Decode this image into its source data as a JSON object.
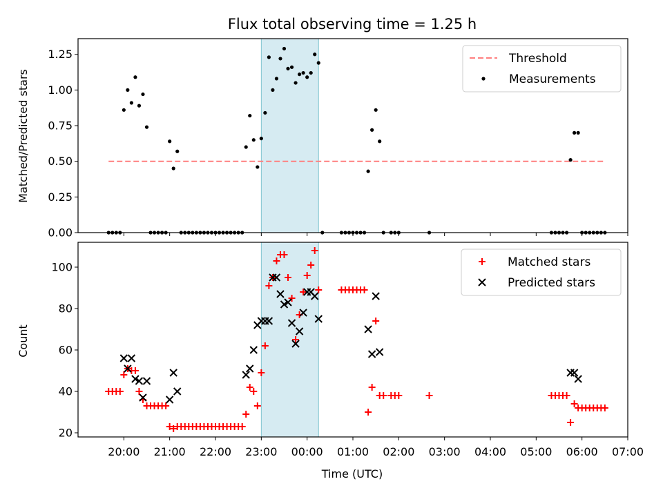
{
  "title": "Flux total observing time = 1.25 h",
  "x_label": "Time (UTC)",
  "x_ticks": [
    "20:00",
    "21:00",
    "22:00",
    "23:00",
    "00:00",
    "01:00",
    "02:00",
    "03:00",
    "04:00",
    "05:00",
    "06:00",
    "07:00"
  ],
  "chart_data": [
    {
      "type": "scatter",
      "ylabel": "Matched/Predicted stars",
      "ylim": [
        0,
        1.36
      ],
      "yticks": [
        "0.00",
        "0.25",
        "0.50",
        "0.75",
        "1.00",
        "1.25"
      ],
      "xlim": [
        "19:00",
        "07:00"
      ],
      "shaded_span": [
        "23:00",
        "00:15"
      ],
      "legend_position": "upper right",
      "series": [
        {
          "name": "Threshold",
          "kind": "dashed-line",
          "color": "#ff7f7f",
          "points": [
            [
              "19:40",
              0.5
            ],
            [
              "06:30",
              0.5
            ]
          ]
        },
        {
          "name": "Measurements",
          "kind": "dots",
          "color": "#000000",
          "points": [
            [
              "19:40",
              0
            ],
            [
              "19:45",
              0
            ],
            [
              "19:50",
              0
            ],
            [
              "19:55",
              0
            ],
            [
              "20:00",
              0.86
            ],
            [
              "20:05",
              1.0
            ],
            [
              "20:10",
              0.91
            ],
            [
              "20:15",
              1.09
            ],
            [
              "20:20",
              0.89
            ],
            [
              "20:25",
              0.97
            ],
            [
              "20:30",
              0.74
            ],
            [
              "20:35",
              0
            ],
            [
              "20:40",
              0
            ],
            [
              "20:45",
              0
            ],
            [
              "20:50",
              0
            ],
            [
              "20:55",
              0
            ],
            [
              "21:00",
              0.64
            ],
            [
              "21:05",
              0.45
            ],
            [
              "21:10",
              0.57
            ],
            [
              "21:15",
              0
            ],
            [
              "21:20",
              0
            ],
            [
              "21:25",
              0
            ],
            [
              "21:30",
              0
            ],
            [
              "21:35",
              0
            ],
            [
              "21:40",
              0
            ],
            [
              "21:45",
              0
            ],
            [
              "21:50",
              0
            ],
            [
              "21:55",
              0
            ],
            [
              "22:00",
              0
            ],
            [
              "22:05",
              0
            ],
            [
              "22:10",
              0
            ],
            [
              "22:15",
              0
            ],
            [
              "22:20",
              0
            ],
            [
              "22:25",
              0
            ],
            [
              "22:30",
              0
            ],
            [
              "22:35",
              0
            ],
            [
              "22:40",
              0.6
            ],
            [
              "22:45",
              0.82
            ],
            [
              "22:50",
              0.65
            ],
            [
              "22:55",
              0.46
            ],
            [
              "23:00",
              0.66
            ],
            [
              "23:05",
              0.84
            ],
            [
              "23:10",
              1.23
            ],
            [
              "23:15",
              1.0
            ],
            [
              "23:20",
              1.08
            ],
            [
              "23:25",
              1.22
            ],
            [
              "23:30",
              1.29
            ],
            [
              "23:35",
              1.15
            ],
            [
              "23:40",
              1.16
            ],
            [
              "23:45",
              1.05
            ],
            [
              "23:50",
              1.11
            ],
            [
              "23:55",
              1.12
            ],
            [
              "00:00",
              1.09
            ],
            [
              "00:05",
              1.12
            ],
            [
              "00:10",
              1.25
            ],
            [
              "00:15",
              1.19
            ],
            [
              "00:20",
              0
            ],
            [
              "00:45",
              0
            ],
            [
              "00:50",
              0
            ],
            [
              "00:55",
              0
            ],
            [
              "01:00",
              0
            ],
            [
              "01:05",
              0
            ],
            [
              "01:10",
              0
            ],
            [
              "01:15",
              0
            ],
            [
              "01:20",
              0.43
            ],
            [
              "01:25",
              0.72
            ],
            [
              "01:30",
              0.86
            ],
            [
              "01:35",
              0.64
            ],
            [
              "01:40",
              0
            ],
            [
              "01:50",
              0
            ],
            [
              "01:55",
              0
            ],
            [
              "02:00",
              0
            ],
            [
              "02:40",
              0
            ],
            [
              "05:20",
              0
            ],
            [
              "05:25",
              0
            ],
            [
              "05:30",
              0
            ],
            [
              "05:35",
              0
            ],
            [
              "05:40",
              0
            ],
            [
              "05:45",
              0.51
            ],
            [
              "05:50",
              0.7
            ],
            [
              "05:55",
              0.7
            ],
            [
              "06:00",
              0
            ],
            [
              "06:05",
              0
            ],
            [
              "06:10",
              0
            ],
            [
              "06:15",
              0
            ],
            [
              "06:20",
              0
            ],
            [
              "06:25",
              0
            ],
            [
              "06:30",
              0
            ]
          ]
        }
      ]
    },
    {
      "type": "scatter",
      "ylabel": "Count",
      "ylim": [
        18,
        112
      ],
      "yticks": [
        "20",
        "40",
        "60",
        "80",
        "100"
      ],
      "xlim": [
        "19:00",
        "07:00"
      ],
      "shaded_span": [
        "23:00",
        "00:15"
      ],
      "legend_position": "upper right",
      "series": [
        {
          "name": "Matched stars",
          "kind": "plus",
          "color": "#ff0000",
          "points": [
            [
              "19:40",
              40
            ],
            [
              "19:45",
              40
            ],
            [
              "19:50",
              40
            ],
            [
              "19:55",
              40
            ],
            [
              "20:00",
              48
            ],
            [
              "20:05",
              51
            ],
            [
              "20:10",
              50
            ],
            [
              "20:15",
              50
            ],
            [
              "20:20",
              40
            ],
            [
              "20:25",
              36
            ],
            [
              "20:30",
              33
            ],
            [
              "20:35",
              33
            ],
            [
              "20:40",
              33
            ],
            [
              "20:45",
              33
            ],
            [
              "20:50",
              33
            ],
            [
              "20:55",
              33
            ],
            [
              "21:00",
              23
            ],
            [
              "21:05",
              22
            ],
            [
              "21:10",
              23
            ],
            [
              "21:15",
              23
            ],
            [
              "21:20",
              23
            ],
            [
              "21:25",
              23
            ],
            [
              "21:30",
              23
            ],
            [
              "21:35",
              23
            ],
            [
              "21:40",
              23
            ],
            [
              "21:45",
              23
            ],
            [
              "21:50",
              23
            ],
            [
              "21:55",
              23
            ],
            [
              "22:00",
              23
            ],
            [
              "22:05",
              23
            ],
            [
              "22:10",
              23
            ],
            [
              "22:15",
              23
            ],
            [
              "22:20",
              23
            ],
            [
              "22:25",
              23
            ],
            [
              "22:30",
              23
            ],
            [
              "22:35",
              23
            ],
            [
              "22:40",
              29
            ],
            [
              "22:45",
              42
            ],
            [
              "22:50",
              40
            ],
            [
              "22:55",
              33
            ],
            [
              "23:00",
              49
            ],
            [
              "23:05",
              62
            ],
            [
              "23:10",
              91
            ],
            [
              "23:15",
              95
            ],
            [
              "23:20",
              103
            ],
            [
              "23:25",
              106
            ],
            [
              "23:30",
              106
            ],
            [
              "23:35",
              95
            ],
            [
              "23:40",
              85
            ],
            [
              "23:45",
              65
            ],
            [
              "23:50",
              77
            ],
            [
              "23:55",
              88
            ],
            [
              "00:00",
              96
            ],
            [
              "00:05",
              101
            ],
            [
              "00:10",
              108
            ],
            [
              "00:15",
              89
            ],
            [
              "00:45",
              89
            ],
            [
              "00:50",
              89
            ],
            [
              "00:55",
              89
            ],
            [
              "01:00",
              89
            ],
            [
              "01:05",
              89
            ],
            [
              "01:10",
              89
            ],
            [
              "01:15",
              89
            ],
            [
              "01:20",
              30
            ],
            [
              "01:25",
              42
            ],
            [
              "01:30",
              74
            ],
            [
              "01:35",
              38
            ],
            [
              "01:40",
              38
            ],
            [
              "01:50",
              38
            ],
            [
              "01:55",
              38
            ],
            [
              "02:00",
              38
            ],
            [
              "02:40",
              38
            ],
            [
              "05:20",
              38
            ],
            [
              "05:25",
              38
            ],
            [
              "05:30",
              38
            ],
            [
              "05:35",
              38
            ],
            [
              "05:40",
              38
            ],
            [
              "05:45",
              25
            ],
            [
              "05:50",
              34
            ],
            [
              "05:55",
              32
            ],
            [
              "06:00",
              32
            ],
            [
              "06:05",
              32
            ],
            [
              "06:10",
              32
            ],
            [
              "06:15",
              32
            ],
            [
              "06:20",
              32
            ],
            [
              "06:25",
              32
            ],
            [
              "06:30",
              32
            ]
          ]
        },
        {
          "name": "Predicted stars",
          "kind": "x",
          "color": "#000000",
          "points": [
            [
              "20:00",
              56
            ],
            [
              "20:05",
              51
            ],
            [
              "20:10",
              56
            ],
            [
              "20:15",
              46
            ],
            [
              "20:20",
              45
            ],
            [
              "20:25",
              37
            ],
            [
              "20:30",
              45
            ],
            [
              "21:00",
              36
            ],
            [
              "21:05",
              49
            ],
            [
              "21:10",
              40
            ],
            [
              "22:40",
              48
            ],
            [
              "22:45",
              51
            ],
            [
              "22:50",
              60
            ],
            [
              "22:55",
              72
            ],
            [
              "23:00",
              74
            ],
            [
              "23:05",
              74
            ],
            [
              "23:10",
              74
            ],
            [
              "23:15",
              95
            ],
            [
              "23:20",
              95
            ],
            [
              "23:25",
              87
            ],
            [
              "23:30",
              82
            ],
            [
              "23:35",
              83
            ],
            [
              "23:40",
              73
            ],
            [
              "23:45",
              63
            ],
            [
              "23:50",
              69
            ],
            [
              "23:55",
              78
            ],
            [
              "00:00",
              88
            ],
            [
              "00:05",
              88
            ],
            [
              "00:10",
              86
            ],
            [
              "00:15",
              75
            ],
            [
              "01:20",
              70
            ],
            [
              "01:25",
              58
            ],
            [
              "01:30",
              86
            ],
            [
              "01:35",
              59
            ],
            [
              "05:45",
              49
            ],
            [
              "05:50",
              49
            ],
            [
              "05:55",
              46
            ]
          ]
        }
      ]
    }
  ]
}
